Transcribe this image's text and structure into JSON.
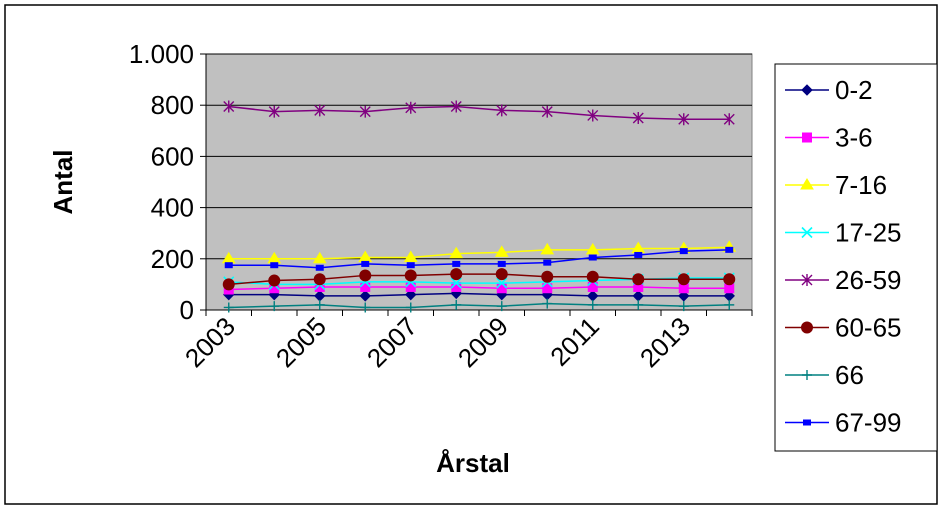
{
  "chart_data": {
    "type": "line",
    "title": "",
    "xlabel": "Årstal",
    "ylabel": "Antal",
    "categories": [
      "2003",
      "2004",
      "2005",
      "2006",
      "2007",
      "2008",
      "2009",
      "2010",
      "2011",
      "2012",
      "2013",
      "2014"
    ],
    "x_tick_labels": [
      "2003",
      "2005",
      "2007",
      "2009",
      "2011",
      "2013"
    ],
    "y_tick_labels": [
      "0",
      "200",
      "400",
      "600",
      "800",
      "1.000"
    ],
    "ylim": [
      0,
      1000
    ],
    "y_ticks": [
      0,
      200,
      400,
      600,
      800,
      1000
    ],
    "grid": true,
    "plot_background": "#c0c0c0",
    "legend_position": "right",
    "series": [
      {
        "name": "0-2",
        "color": "#000080",
        "marker": "diamond",
        "values": [
          60,
          60,
          55,
          55,
          60,
          65,
          60,
          60,
          55,
          55,
          55,
          55
        ]
      },
      {
        "name": "3-6",
        "color": "#ff00ff",
        "marker": "square",
        "values": [
          80,
          85,
          90,
          90,
          90,
          90,
          85,
          85,
          90,
          90,
          85,
          85
        ]
      },
      {
        "name": "7-16",
        "color": "#ffff00",
        "marker": "triangle",
        "values": [
          200,
          200,
          200,
          205,
          205,
          220,
          225,
          235,
          235,
          240,
          240,
          245
        ]
      },
      {
        "name": "17-25",
        "color": "#00ffff",
        "marker": "x",
        "values": [
          110,
          100,
          100,
          110,
          110,
          105,
          105,
          110,
          115,
          120,
          125,
          125
        ]
      },
      {
        "name": "26-59",
        "color": "#800080",
        "marker": "star",
        "values": [
          795,
          775,
          780,
          775,
          790,
          795,
          780,
          775,
          760,
          750,
          745,
          745
        ]
      },
      {
        "name": "60-65",
        "color": "#800000",
        "marker": "circle",
        "values": [
          100,
          115,
          120,
          135,
          135,
          140,
          140,
          130,
          130,
          120,
          120,
          120
        ]
      },
      {
        "name": "66",
        "color": "#008080",
        "marker": "plus",
        "values": [
          10,
          15,
          20,
          10,
          10,
          20,
          15,
          25,
          20,
          20,
          15,
          20
        ]
      },
      {
        "name": "67-99",
        "color": "#0000ff",
        "marker": "square-small",
        "values": [
          175,
          175,
          165,
          180,
          175,
          180,
          180,
          185,
          205,
          215,
          230,
          235
        ]
      }
    ]
  }
}
